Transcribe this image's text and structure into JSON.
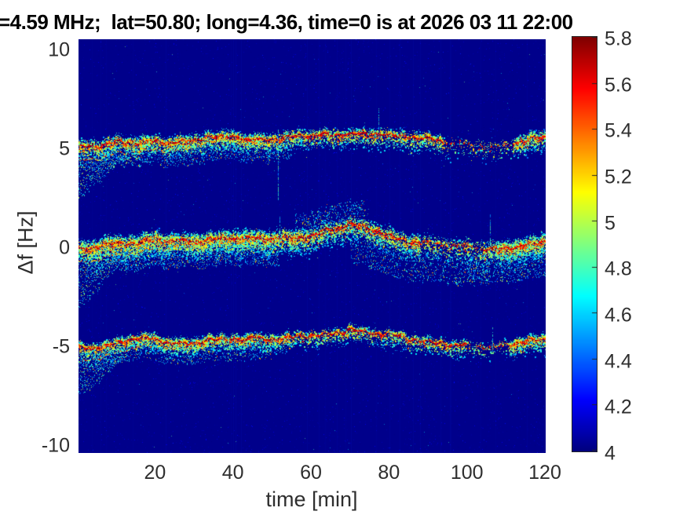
{
  "chart_data": {
    "type": "heatmap",
    "subtype": "doppler-spectrogram",
    "title": "=4.59 MHz;  lat=50.80; long=4.36, time=0 is at 2026 03 11 22:00",
    "xlabel": "time [min]",
    "ylabel": "Δf [Hz]",
    "xlim": [
      0.4,
      120.2
    ],
    "ylim": [
      -10.36,
      10.56
    ],
    "xticks": [
      20,
      40,
      60,
      80,
      100,
      120
    ],
    "xtick_labels": [
      "20",
      "40",
      "60",
      "80",
      "100",
      "120"
    ],
    "yticks": [
      10,
      5,
      0,
      -5,
      -10
    ],
    "ytick_labels": [
      "10",
      "5",
      "0",
      "-5",
      "-10"
    ],
    "grid": false,
    "legend": "none",
    "colormap": "jet",
    "colorbar": {
      "min": 4,
      "max": 5.8,
      "ticks": [
        5.8,
        5.6,
        5.4,
        5.2,
        5,
        4.8,
        4.6,
        4.4,
        4.2,
        4
      ],
      "tick_labels": [
        "5.8",
        "5.6",
        "5.4",
        "5.2",
        "5",
        "4.8",
        "4.6",
        "4.4",
        "4.2",
        "4"
      ],
      "position": "right"
    },
    "background_value": 4.02,
    "bands": [
      {
        "name": "upper-sideband-trace",
        "approx_center_hz": 5,
        "path": [
          [
            0,
            5.08
          ],
          [
            6,
            5.3
          ],
          [
            12,
            5.45
          ],
          [
            16,
            5.5
          ],
          [
            22,
            5.46
          ],
          [
            28,
            5.42
          ],
          [
            34,
            5.55
          ],
          [
            40,
            5.6
          ],
          [
            46,
            5.58
          ],
          [
            52,
            5.62
          ],
          [
            58,
            5.72
          ],
          [
            64,
            5.82
          ],
          [
            70,
            5.9
          ],
          [
            76,
            5.9
          ],
          [
            82,
            5.8
          ],
          [
            88,
            5.65
          ],
          [
            94,
            5.5
          ],
          [
            100,
            5.35
          ],
          [
            106,
            5.28
          ],
          [
            112,
            5.35
          ],
          [
            116,
            5.5
          ],
          [
            120,
            5.62
          ]
        ],
        "companion": {
          "gap": 0.62,
          "merge_t": 48
        },
        "spray": {
          "depth": 2.0,
          "end_t": 13
        },
        "cloud": {
          "sigma_above": 0.2,
          "sigma_below": 0.45,
          "density": 8,
          "left_rich_until": 58,
          "dip": [
            94,
            112
          ],
          "dip_factor": 0.25,
          "right_boost": 112.5
        },
        "extra": [
          {
            "t0": 0,
            "t1": 55,
            "depth": 0.95,
            "density": 4,
            "side": -1
          }
        ]
      },
      {
        "name": "carrier-trace",
        "approx_center_hz": 0,
        "path": [
          [
            0,
            -0.05
          ],
          [
            6,
            0.15
          ],
          [
            12,
            0.35
          ],
          [
            18,
            0.42
          ],
          [
            24,
            0.34
          ],
          [
            30,
            0.3
          ],
          [
            36,
            0.38
          ],
          [
            42,
            0.45
          ],
          [
            48,
            0.52
          ],
          [
            54,
            0.6
          ],
          [
            60,
            0.75
          ],
          [
            66,
            1.05
          ],
          [
            70,
            1.25
          ],
          [
            74,
            1.05
          ],
          [
            80,
            0.6
          ],
          [
            86,
            0.4
          ],
          [
            92,
            0.28
          ],
          [
            98,
            0.15
          ],
          [
            104,
            0.08
          ],
          [
            110,
            0.12
          ],
          [
            116,
            0.32
          ],
          [
            120,
            0.42
          ]
        ],
        "companion": {
          "gap": 0.65,
          "merge_t": 50
        },
        "spray": {
          "depth": 2.4,
          "end_t": 13
        },
        "cloud": {
          "sigma_above": 0.25,
          "sigma_below": 0.55,
          "density": 13,
          "left_rich_until": 58,
          "dip": [
            88,
            104
          ],
          "dip_factor": 0.45,
          "right_boost": 108
        },
        "extra": [
          {
            "t0": 2,
            "t1": 52,
            "depth": 1.15,
            "density": 6,
            "side": -1
          },
          {
            "t0": 56,
            "t1": 74,
            "depth": 1.0,
            "density": 4,
            "side": 1
          },
          {
            "t0": 70,
            "t1": 102,
            "depth": 1.75,
            "density": 6,
            "side": -1
          },
          {
            "t0": 100,
            "t1": 120.5,
            "depth": 1.5,
            "density": 7,
            "side": -1
          }
        ]
      },
      {
        "name": "lower-sideband-trace",
        "approx_center_hz": -5,
        "path": [
          [
            0,
            -5.0
          ],
          [
            5,
            -4.9
          ],
          [
            10,
            -4.7
          ],
          [
            16,
            -4.55
          ],
          [
            22,
            -4.75
          ],
          [
            28,
            -4.8
          ],
          [
            34,
            -4.7
          ],
          [
            40,
            -4.68
          ],
          [
            46,
            -4.6
          ],
          [
            52,
            -4.55
          ],
          [
            58,
            -4.5
          ],
          [
            64,
            -4.4
          ],
          [
            70,
            -4.2
          ],
          [
            76,
            -4.35
          ],
          [
            82,
            -4.45
          ],
          [
            88,
            -4.55
          ],
          [
            94,
            -4.7
          ],
          [
            100,
            -4.85
          ],
          [
            106,
            -4.9
          ],
          [
            112,
            -4.85
          ],
          [
            116,
            -4.78
          ],
          [
            120,
            -4.72
          ]
        ],
        "companion": {
          "gap": 0.55,
          "merge_t": 45
        },
        "spray": {
          "depth": 1.9,
          "end_t": 13
        },
        "cloud": {
          "sigma_above": 0.16,
          "sigma_below": 0.4,
          "density": 7,
          "left_rich_until": 55,
          "dip": [
            100,
            111
          ],
          "dip_factor": 0.3,
          "right_boost": 111
        },
        "extra": [
          {
            "t0": 0,
            "t1": 50,
            "depth": 0.85,
            "density": 3,
            "side": -1
          }
        ]
      }
    ],
    "spikes": [
      {
        "band": 0,
        "t": 51.5,
        "up": 0.4,
        "down": 3.2
      },
      {
        "band": 0,
        "t": 77.3,
        "up": 1.2,
        "down": 0.5
      },
      {
        "band": 1,
        "t": 106.0,
        "up": 1.6,
        "down": 0.3
      },
      {
        "band": 1,
        "t": 52.0,
        "up": 1.0,
        "down": 0.3
      },
      {
        "band": 2,
        "t": 106.5,
        "up": 0.9,
        "down": 0.3
      }
    ],
    "noise": {
      "bg_speckle": 9500,
      "bright_speckle": 170,
      "vertical_stripes": 26
    }
  }
}
